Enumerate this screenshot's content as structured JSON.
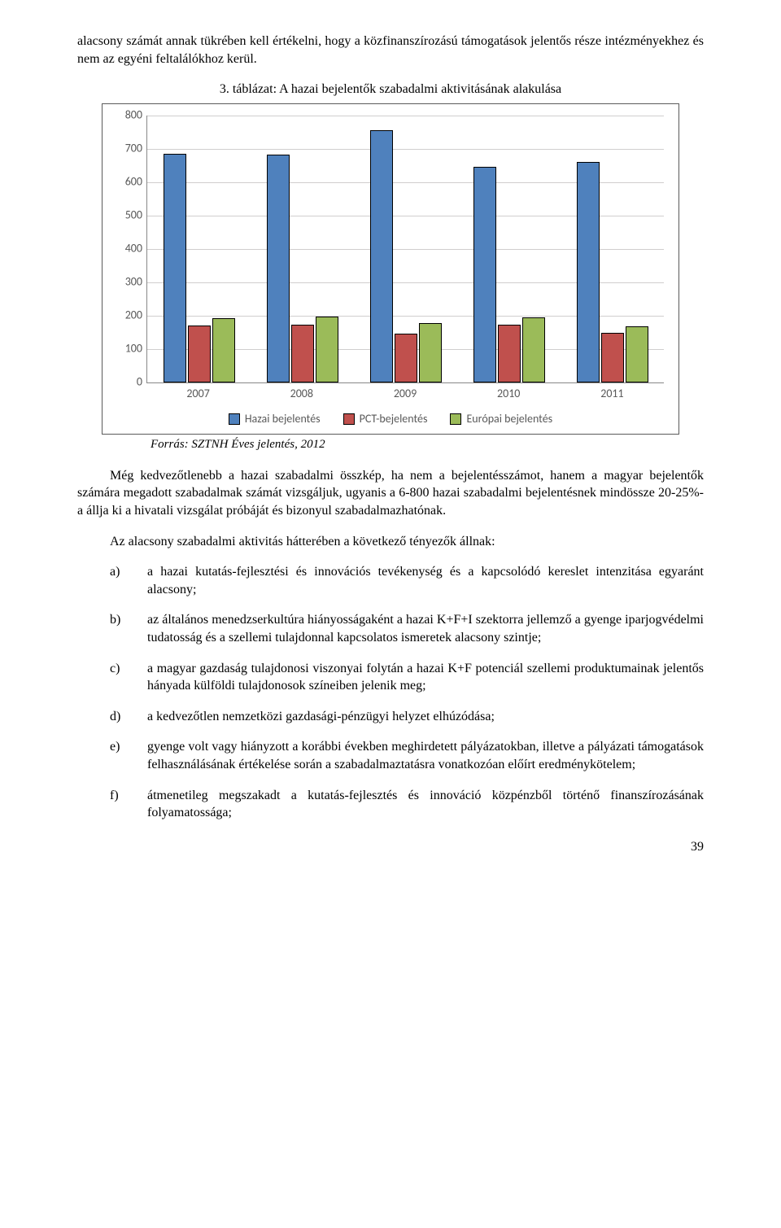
{
  "intro_paragraph": "alacsony számát annak tükrében kell értékelni, hogy a közfinanszírozású támogatások jelentős része intézményekhez és nem az egyéni feltalálókhoz kerül.",
  "chart": {
    "title": "3.  táblázat: A hazai bejelentők szabadalmi aktivitásának alakulása",
    "type": "bar",
    "categories": [
      "2007",
      "2008",
      "2009",
      "2010",
      "2011"
    ],
    "series": [
      {
        "name": "Hazai bejelentés",
        "color": "#4f81bd",
        "values": [
          686,
          682,
          756,
          646,
          660
        ]
      },
      {
        "name": "PCT-bejelentés",
        "color": "#c0504d",
        "values": [
          170,
          173,
          145,
          172,
          149
        ]
      },
      {
        "name": "Európai bejelentés",
        "color": "#9bbb59",
        "values": [
          191,
          197,
          177,
          194,
          168
        ]
      }
    ],
    "ylim": [
      0,
      800
    ],
    "ytick_step": 100,
    "yticks": [
      "0",
      "100",
      "200",
      "300",
      "400",
      "500",
      "600",
      "700",
      "800"
    ],
    "bar_border_color": "#000000",
    "grid_color": "#d0cece",
    "axis_color": "#888888",
    "bg_color": "#ffffff",
    "label_font": "Calibri",
    "label_fontsize": 14,
    "legend_items": [
      "Hazai bejelentés",
      "PCT-bejelentés",
      "Európai bejelentés"
    ]
  },
  "source_line": "Forrás: SZTNH Éves jelentés, 2012",
  "para_after_chart": "Még kedvezőtlenebb a hazai szabadalmi összkép, ha nem a bejelentésszámot, hanem a magyar bejelentők számára megadott szabadalmak számát vizsgáljuk, ugyanis a 6-800 hazai szabadalmi bejelentésnek mindössze 20-25%-a állja ki a hivatali vizsgálat próbáját és bizonyul szabadalmazhatónak.",
  "factors_heading": "Az alacsony szabadalmi aktivitás hátterében a következő tényezők állnak:",
  "factors": [
    {
      "marker": "a)",
      "text": "a hazai kutatás-fejlesztési és innovációs tevékenység és a kapcsolódó kereslet intenzitása egyaránt alacsony;"
    },
    {
      "marker": "b)",
      "text": "az általános menedzserkultúra hiányosságaként a hazai K+F+I szektorra jellemző a gyenge iparjogvédelmi tudatosság és a szellemi tulajdonnal kapcsolatos ismeretek alacsony szintje;"
    },
    {
      "marker": "c)",
      "text": "a magyar gazdaság tulajdonosi viszonyai folytán a hazai K+F potenciál szellemi produktumainak jelentős hányada külföldi tulajdonosok színeiben jelenik meg;"
    },
    {
      "marker": "d)",
      "text": "a kedvezőtlen nemzetközi gazdasági-pénzügyi helyzet elhúzódása;"
    },
    {
      "marker": "e)",
      "text": "gyenge volt vagy hiányzott a korábbi években meghirdetett pályázatokban, illetve a pályázati támogatások felhasználásának értékelése során a szabadalmaztatásra vonatkozóan előírt eredménykötelem;"
    },
    {
      "marker": "f)",
      "text": "átmenetileg megszakadt a kutatás-fejlesztés és innováció közpénzből történő finanszírozásának folyamatossága;"
    }
  ],
  "page_number": "39"
}
